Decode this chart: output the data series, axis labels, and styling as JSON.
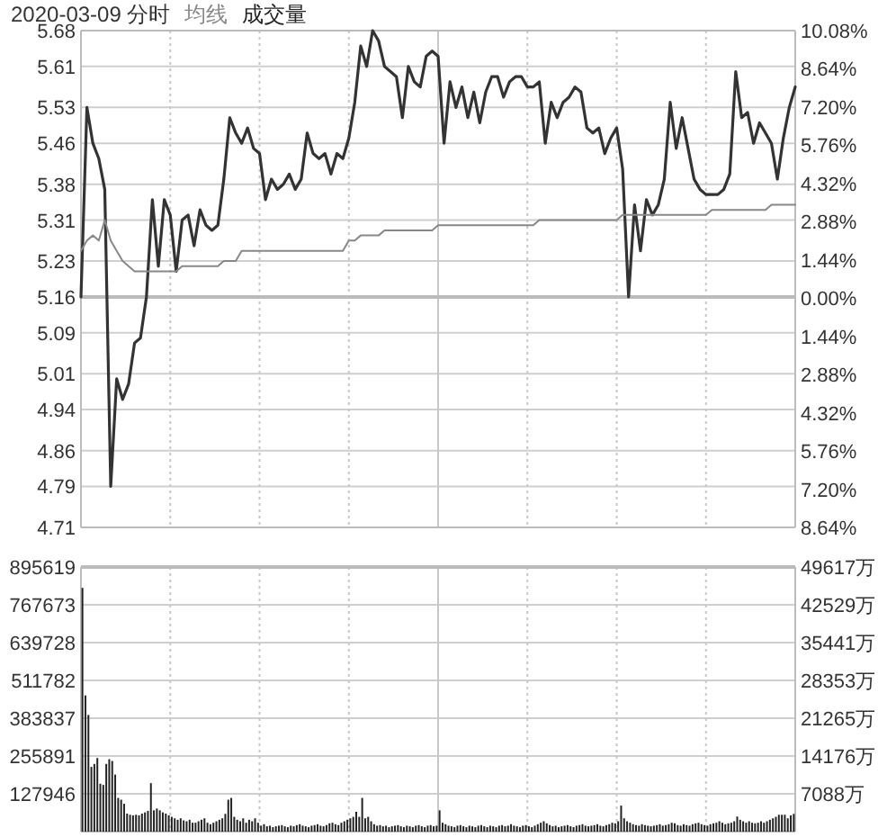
{
  "chart_data": [
    {
      "type": "line",
      "title": "2020-03-09 分时",
      "grid": true,
      "tick_labels": "y",
      "line_style": "solid",
      "categories": [
        null,
        null,
        null,
        null,
        null,
        null,
        null,
        null,
        null,
        null,
        null,
        null,
        null,
        null,
        null,
        null,
        null,
        null,
        null,
        null,
        null,
        null,
        null,
        null,
        null,
        null,
        null,
        null,
        null,
        null,
        null,
        null,
        null,
        null,
        null,
        null,
        null,
        null,
        null,
        null,
        null,
        null,
        null,
        null,
        null,
        null,
        null,
        null,
        null,
        null,
        null,
        null,
        null,
        null,
        null,
        null,
        null,
        null,
        null,
        null,
        null,
        null,
        null,
        null,
        null,
        null,
        null,
        null,
        null,
        null,
        null,
        null,
        null,
        null,
        null,
        null,
        null,
        null,
        null,
        null,
        null,
        null,
        null,
        null,
        null,
        null,
        null,
        null,
        null,
        null,
        null,
        null,
        null,
        null,
        null,
        null,
        null,
        null,
        null,
        null,
        null,
        null,
        null,
        null,
        null,
        null,
        null,
        null,
        null,
        null,
        null,
        null,
        null,
        null,
        null,
        null,
        null,
        null,
        null,
        null,
        null
      ],
      "ylim": [
        4.71,
        5.68
      ],
      "yticks": [
        5.68,
        5.61,
        5.53,
        5.46,
        5.38,
        5.31,
        5.23,
        5.16,
        5.09,
        5.01,
        4.94,
        4.86,
        4.79,
        4.71
      ],
      "y2lim": [
        -8.64,
        10.08
      ],
      "y2ticks": [
        {
          "value": 10.08,
          "label": "10.08%"
        },
        {
          "value": 8.64,
          "label": "8.64%"
        },
        {
          "value": 7.2,
          "label": "7.20%"
        },
        {
          "value": 5.76,
          "label": "5.76%"
        },
        {
          "value": 4.32,
          "label": "4.32%"
        },
        {
          "value": 2.88,
          "label": "2.88%"
        },
        {
          "value": 1.44,
          "label": "1.44%"
        },
        {
          "value": 0,
          "label": "0.00%"
        },
        {
          "value": -1.44,
          "label": "1.44%"
        },
        {
          "value": -2.88,
          "label": "2.88%"
        },
        {
          "value": -4.32,
          "label": "4.32%"
        },
        {
          "value": -5.76,
          "label": "5.76%"
        },
        {
          "value": -7.2,
          "label": "7.20%"
        },
        {
          "value": -8.64,
          "label": "8.64%"
        }
      ],
      "ref_lines": [
        {
          "axis": "y",
          "value": 5.16,
          "color": "#bbbbbb"
        }
      ],
      "series": [
        {
          "color": "#333333",
          "values": [
            5.16,
            5.53,
            5.46,
            5.43,
            5.37,
            4.79,
            5.0,
            4.96,
            4.99,
            5.07,
            5.08,
            5.16,
            5.35,
            5.22,
            5.35,
            5.32,
            5.21,
            5.31,
            5.32,
            5.26,
            5.33,
            5.3,
            5.29,
            5.3,
            5.39,
            5.51,
            5.48,
            5.46,
            5.49,
            5.45,
            5.44,
            5.35,
            5.39,
            5.37,
            5.38,
            5.4,
            5.37,
            5.39,
            5.48,
            5.44,
            5.43,
            5.44,
            5.4,
            5.44,
            5.43,
            5.47,
            5.54,
            5.65,
            5.61,
            5.68,
            5.66,
            5.61,
            5.6,
            5.59,
            5.51,
            5.61,
            5.58,
            5.57,
            5.63,
            5.64,
            5.63,
            5.46,
            5.58,
            5.53,
            5.57,
            5.51,
            5.56,
            5.5,
            5.56,
            5.59,
            5.59,
            5.55,
            5.58,
            5.59,
            5.59,
            5.57,
            5.57,
            5.58,
            5.46,
            5.54,
            5.51,
            5.54,
            5.55,
            5.57,
            5.56,
            5.49,
            5.48,
            5.49,
            5.44,
            5.47,
            5.49,
            5.41,
            5.16,
            5.34,
            5.25,
            5.35,
            5.32,
            5.34,
            5.39,
            5.54,
            5.45,
            5.51,
            5.45,
            5.39,
            5.37,
            5.36,
            5.36,
            5.36,
            5.37,
            5.4,
            5.6,
            5.51,
            5.52,
            5.46,
            5.5,
            5.48,
            5.46,
            5.39,
            5.47,
            5.53,
            5.57
          ]
        },
        {
          "name": "均线",
          "color": "#888888",
          "values": [
            5.25,
            5.27,
            5.28,
            5.27,
            5.31,
            5.27,
            5.25,
            5.23,
            5.22,
            5.21,
            5.21,
            5.21,
            5.21,
            5.21,
            5.21,
            5.21,
            5.21,
            5.22,
            5.22,
            5.22,
            5.22,
            5.22,
            5.22,
            5.22,
            5.23,
            5.23,
            5.23,
            5.25,
            5.25,
            5.25,
            5.25,
            5.25,
            5.25,
            5.25,
            5.25,
            5.25,
            5.25,
            5.25,
            5.25,
            5.25,
            5.25,
            5.25,
            5.25,
            5.25,
            5.25,
            5.27,
            5.27,
            5.28,
            5.28,
            5.28,
            5.28,
            5.29,
            5.29,
            5.29,
            5.29,
            5.29,
            5.29,
            5.29,
            5.29,
            5.29,
            5.3,
            5.3,
            5.3,
            5.3,
            5.3,
            5.3,
            5.3,
            5.3,
            5.3,
            5.3,
            5.3,
            5.3,
            5.3,
            5.3,
            5.3,
            5.3,
            5.3,
            5.31,
            5.31,
            5.31,
            5.31,
            5.31,
            5.31,
            5.31,
            5.31,
            5.31,
            5.31,
            5.31,
            5.31,
            5.31,
            5.31,
            5.32,
            5.32,
            5.32,
            5.32,
            5.32,
            5.32,
            5.32,
            5.32,
            5.32,
            5.32,
            5.32,
            5.32,
            5.32,
            5.32,
            5.32,
            5.33,
            5.33,
            5.33,
            5.33,
            5.33,
            5.33,
            5.33,
            5.33,
            5.33,
            5.33,
            5.34,
            5.34,
            5.34,
            5.34,
            5.34
          ]
        }
      ]
    },
    {
      "type": "bar",
      "grid": true,
      "tick_labels": "y",
      "categories": [
        null,
        null,
        null,
        null,
        null,
        null,
        null,
        null,
        null,
        null,
        null,
        null,
        null,
        null,
        null,
        null,
        null,
        null,
        null,
        null,
        null,
        null,
        null,
        null,
        null,
        null,
        null,
        null,
        null,
        null,
        null,
        null,
        null,
        null,
        null,
        null,
        null,
        null,
        null,
        null,
        null,
        null,
        null,
        null,
        null,
        null,
        null,
        null,
        null,
        null,
        null,
        null,
        null,
        null,
        null,
        null,
        null,
        null,
        null,
        null,
        null,
        null,
        null,
        null,
        null,
        null,
        null,
        null,
        null,
        null,
        null,
        null,
        null,
        null,
        null,
        null,
        null,
        null,
        null,
        null,
        null,
        null,
        null,
        null,
        null,
        null,
        null,
        null,
        null,
        null,
        null,
        null,
        null,
        null,
        null,
        null,
        null,
        null,
        null,
        null,
        null,
        null,
        null,
        null,
        null,
        null,
        null,
        null,
        null,
        null,
        null,
        null,
        null,
        null,
        null,
        null,
        null,
        null,
        null,
        null,
        null,
        null,
        null,
        null,
        null,
        null,
        null,
        null,
        null,
        null,
        null,
        null,
        null,
        null,
        null,
        null,
        null,
        null,
        null,
        null,
        null,
        null,
        null,
        null,
        null,
        null,
        null,
        null,
        null,
        null,
        null,
        null,
        null,
        null,
        null,
        null,
        null,
        null,
        null,
        null,
        null,
        null,
        null,
        null,
        null,
        null,
        null,
        null,
        null,
        null,
        null,
        null,
        null,
        null,
        null,
        null,
        null,
        null,
        null,
        null,
        null,
        null,
        null,
        null,
        null,
        null,
        null,
        null,
        null,
        null,
        null,
        null,
        null,
        null,
        null,
        null,
        null,
        null,
        null,
        null,
        null,
        null,
        null,
        null,
        null,
        null,
        null,
        null,
        null,
        null,
        null,
        null,
        null,
        null,
        null,
        null,
        null,
        null,
        null,
        null,
        null,
        null,
        null,
        null,
        null,
        null,
        null,
        null,
        null,
        null,
        null,
        null,
        null,
        null,
        null,
        null,
        null,
        null,
        null,
        null
      ],
      "ylim": [
        0,
        895619
      ],
      "yticks": [
        127946,
        255891,
        383837,
        511782,
        639728,
        767673,
        895619
      ],
      "y2lim": [
        0,
        49617
      ],
      "y2ticks": [
        {
          "value": 7088,
          "label": "7088万"
        },
        {
          "value": 14176,
          "label": "14176万"
        },
        {
          "value": 21265,
          "label": "21265万"
        },
        {
          "value": 28353,
          "label": "28353万"
        },
        {
          "value": 35441,
          "label": "35441万"
        },
        {
          "value": 42529,
          "label": "42529万"
        },
        {
          "value": 49617,
          "label": "49617万"
        }
      ],
      "series": [
        {
          "name": "成交量",
          "color": "#222222",
          "values": [
            825000,
            461000,
            395000,
            219000,
            229000,
            249000,
            162000,
            158000,
            229000,
            245000,
            239000,
            193000,
            114000,
            108000,
            94000,
            61000,
            57000,
            55000,
            57000,
            55000,
            61000,
            65000,
            70000,
            164000,
            72000,
            78000,
            72000,
            65000,
            61000,
            55000,
            50000,
            45000,
            40000,
            45000,
            38000,
            35000,
            40000,
            30000,
            30000,
            35000,
            40000,
            45000,
            30000,
            25000,
            30000,
            35000,
            40000,
            45000,
            60000,
            108000,
            114000,
            50000,
            40000,
            35000,
            45000,
            30000,
            40000,
            35000,
            45000,
            30000,
            20000,
            25000,
            18000,
            20000,
            15000,
            18000,
            20000,
            22000,
            18000,
            15000,
            20000,
            18000,
            22000,
            25000,
            20000,
            18000,
            15000,
            20000,
            22000,
            25000,
            20000,
            18000,
            22000,
            28000,
            30000,
            25000,
            22000,
            30000,
            35000,
            40000,
            45000,
            50000,
            67000,
            50000,
            114000,
            45000,
            50000,
            35000,
            25000,
            20000,
            22000,
            18000,
            20000,
            15000,
            18000,
            20000,
            22000,
            18000,
            15000,
            20000,
            18000,
            15000,
            20000,
            22000,
            18000,
            15000,
            20000,
            22000,
            18000,
            20000,
            72000,
            30000,
            25000,
            20000,
            18000,
            15000,
            20000,
            22000,
            18000,
            15000,
            20000,
            18000,
            15000,
            20000,
            22000,
            18000,
            15000,
            20000,
            18000,
            15000,
            20000,
            22000,
            18000,
            20000,
            25000,
            20000,
            18000,
            15000,
            20000,
            22000,
            18000,
            15000,
            20000,
            25000,
            30000,
            35000,
            28000,
            22000,
            18000,
            20000,
            15000,
            18000,
            20000,
            22000,
            18000,
            15000,
            20000,
            22000,
            25000,
            20000,
            18000,
            20000,
            22000,
            25000,
            20000,
            18000,
            22000,
            25000,
            30000,
            28000,
            35000,
            88000,
            45000,
            35000,
            30000,
            25000,
            22000,
            20000,
            25000,
            22000,
            20000,
            18000,
            20000,
            22000,
            25000,
            20000,
            22000,
            25000,
            30000,
            28000,
            22000,
            20000,
            25000,
            22000,
            20000,
            25000,
            28000,
            30000,
            25000,
            22000,
            20000,
            25000,
            28000,
            30000,
            35000,
            30000,
            25000,
            28000,
            30000,
            35000,
            51000,
            40000,
            35000,
            30000,
            35000,
            30000,
            28000,
            30000,
            35000,
            30000,
            35000,
            40000,
            45000,
            50000,
            57000,
            57000,
            57000,
            45000,
            55000,
            60000
          ]
        }
      ]
    }
  ]
}
